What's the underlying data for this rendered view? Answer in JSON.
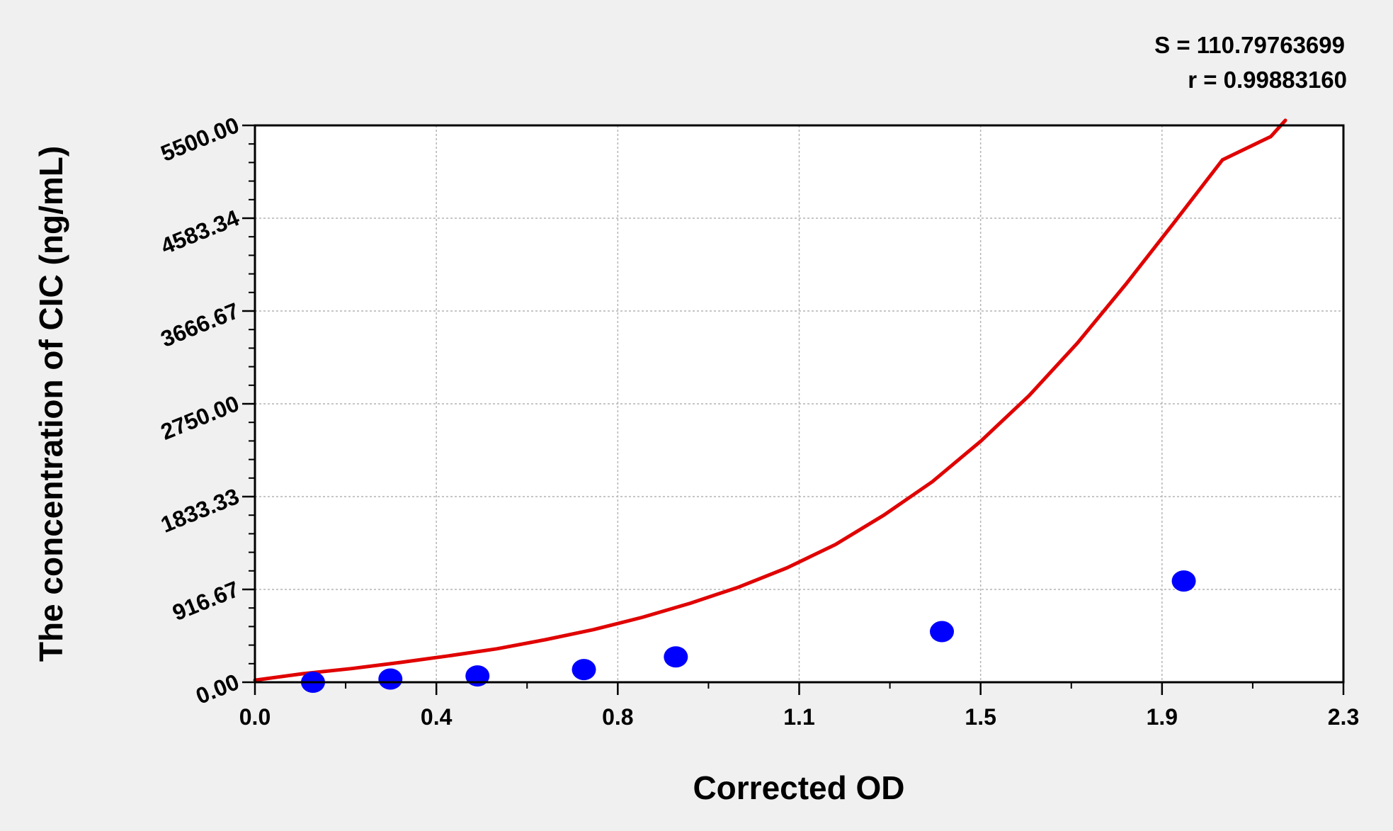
{
  "stats": {
    "s_text": "S = 110.79763699",
    "r_text": "r = 0.99883160"
  },
  "chart_data": {
    "type": "scatter",
    "xlabel": "Corrected OD",
    "ylabel": "The concentration of CIC (ng/mL)",
    "xlim": [
      0,
      2.25
    ],
    "ylim": [
      0,
      5500
    ],
    "x_ticks": [
      {
        "value": 0,
        "label": "0.0"
      },
      {
        "value": 0.375,
        "label": "0.4"
      },
      {
        "value": 0.75,
        "label": "0.8"
      },
      {
        "value": 1.125,
        "label": "1.1"
      },
      {
        "value": 1.5,
        "label": "1.5"
      },
      {
        "value": 1.875,
        "label": "1.9"
      },
      {
        "value": 2.25,
        "label": "2.3"
      }
    ],
    "y_ticks": [
      {
        "value": 0,
        "label": "0.00"
      },
      {
        "value": 916.67,
        "label": "916.67"
      },
      {
        "value": 1833.33,
        "label": "1833.33"
      },
      {
        "value": 2750,
        "label": "2750.00"
      },
      {
        "value": 3666.67,
        "label": "3666.67"
      },
      {
        "value": 4583.34,
        "label": "4583.34"
      },
      {
        "value": 5500,
        "label": "5500.00"
      }
    ],
    "grid": true,
    "points": {
      "x": [
        0.12,
        0.28,
        0.46,
        0.68,
        0.87,
        1.42,
        1.92
      ],
      "y": [
        0,
        31.25,
        62.5,
        125,
        250,
        500,
        1000
      ],
      "color": "#0000ff"
    },
    "fit_curve": {
      "color": "#e00000",
      "x": [
        0,
        0.1,
        0.2,
        0.3,
        0.4,
        0.5,
        0.6,
        0.7,
        0.8,
        0.9,
        1.0,
        1.1,
        1.2,
        1.3,
        1.4,
        1.5,
        1.6,
        1.7,
        1.8,
        1.9,
        2.0,
        2.1,
        2.13
      ],
      "y": [
        20,
        85,
        135,
        195,
        260,
        330,
        420,
        520,
        640,
        780,
        940,
        1130,
        1360,
        1650,
        1980,
        2380,
        2830,
        3350,
        3930,
        4540,
        5160,
        5390,
        5550
      ]
    }
  }
}
